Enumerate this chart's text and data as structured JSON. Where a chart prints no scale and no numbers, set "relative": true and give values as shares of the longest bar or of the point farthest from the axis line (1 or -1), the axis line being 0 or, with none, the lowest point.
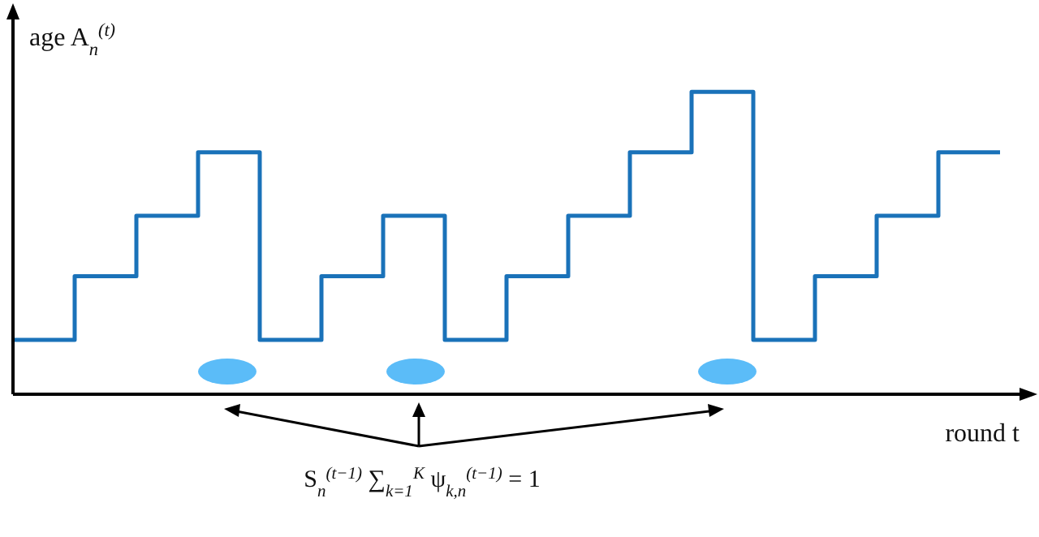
{
  "chart_data": {
    "type": "step",
    "ylabel": "age A$_{n}$$^{(t)}$",
    "xlabel": "round t",
    "relative": true,
    "categories": [
      null,
      null,
      null,
      null,
      null,
      null,
      null,
      null,
      null,
      null,
      null,
      null,
      null,
      null,
      null,
      null,
      null
    ],
    "series": [
      {
        "color": "#1a72b9",
        "values": [
          0.18,
          0.39,
          0.59,
          0.8,
          0.18,
          0.39,
          0.59,
          0.18,
          0.39,
          0.59,
          0.8,
          1,
          0.18,
          0.39,
          0.59,
          0.8,
          0.8
        ]
      }
    ],
    "annotations": [
      "S$_{n}$$^{(t−1)}$ ∑$_{k=1}$$^{K}$ ψ$_{k,n}$$^{(t−1)}$ = 1"
    ],
    "grid": false,
    "legend": false
  }
}
